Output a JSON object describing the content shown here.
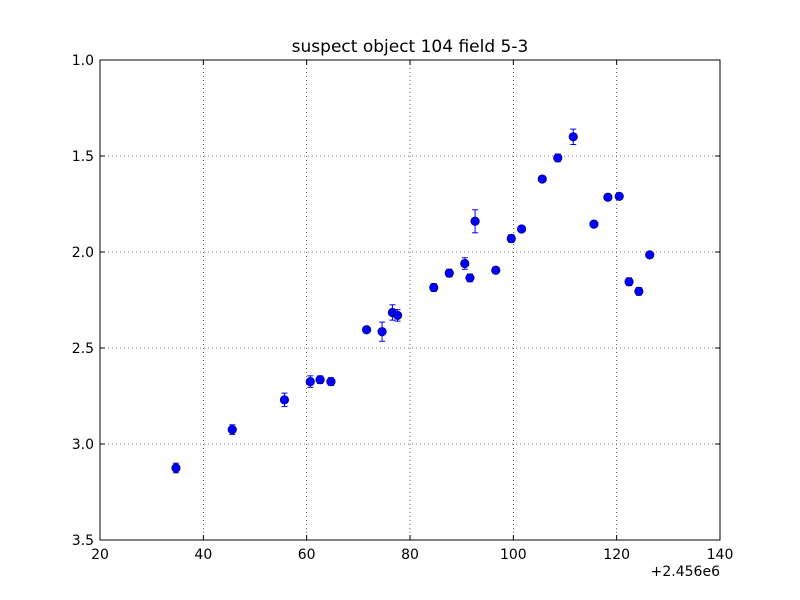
{
  "chart_data": {
    "type": "scatter",
    "title": "suspect object 104 field 5-3",
    "xlabel": "",
    "ylabel": "",
    "x_offset_label": "+2.456e6",
    "xlim": [
      20,
      140
    ],
    "ylim": [
      3.5,
      1.0
    ],
    "y_inverted": true,
    "grid": true,
    "marker_color": "#0000ff",
    "x_ticks": [
      20,
      40,
      60,
      80,
      100,
      120,
      140
    ],
    "x_tick_labels": [
      "20",
      "40",
      "60",
      "80",
      "100",
      "120",
      "140"
    ],
    "y_ticks": [
      1.0,
      1.5,
      2.0,
      2.5,
      3.0,
      3.5
    ],
    "y_tick_labels": [
      "1.0",
      "1.5",
      "2.0",
      "2.5",
      "3.0",
      "3.5"
    ],
    "points": [
      {
        "x": 34.7,
        "y": 3.125,
        "err": 0.025
      },
      {
        "x": 45.6,
        "y": 2.925,
        "err": 0.025
      },
      {
        "x": 55.7,
        "y": 2.77,
        "err": 0.035
      },
      {
        "x": 60.7,
        "y": 2.675,
        "err": 0.03
      },
      {
        "x": 62.6,
        "y": 2.665,
        "err": 0.02
      },
      {
        "x": 64.7,
        "y": 2.675,
        "err": 0.02
      },
      {
        "x": 71.6,
        "y": 2.405,
        "err": 0.015
      },
      {
        "x": 74.6,
        "y": 2.415,
        "err": 0.05
      },
      {
        "x": 76.6,
        "y": 2.315,
        "err": 0.04
      },
      {
        "x": 77.6,
        "y": 2.33,
        "err": 0.03
      },
      {
        "x": 84.6,
        "y": 2.185,
        "err": 0.02
      },
      {
        "x": 87.6,
        "y": 2.11,
        "err": 0.02
      },
      {
        "x": 90.6,
        "y": 2.06,
        "err": 0.03
      },
      {
        "x": 91.6,
        "y": 2.135,
        "err": 0.02
      },
      {
        "x": 92.6,
        "y": 1.84,
        "err": 0.06
      },
      {
        "x": 96.6,
        "y": 2.095,
        "err": 0.015
      },
      {
        "x": 99.6,
        "y": 1.93,
        "err": 0.02
      },
      {
        "x": 101.6,
        "y": 1.88,
        "err": 0.015
      },
      {
        "x": 105.6,
        "y": 1.62,
        "err": 0.015
      },
      {
        "x": 108.6,
        "y": 1.51,
        "err": 0.02
      },
      {
        "x": 111.6,
        "y": 1.4,
        "err": 0.04
      },
      {
        "x": 115.6,
        "y": 1.855,
        "err": 0.015
      },
      {
        "x": 118.3,
        "y": 1.715,
        "err": 0.015
      },
      {
        "x": 120.5,
        "y": 1.71,
        "err": 0.015
      },
      {
        "x": 122.4,
        "y": 2.155,
        "err": 0.02
      },
      {
        "x": 124.3,
        "y": 2.205,
        "err": 0.02
      },
      {
        "x": 126.4,
        "y": 2.015,
        "err": 0.015
      }
    ]
  }
}
